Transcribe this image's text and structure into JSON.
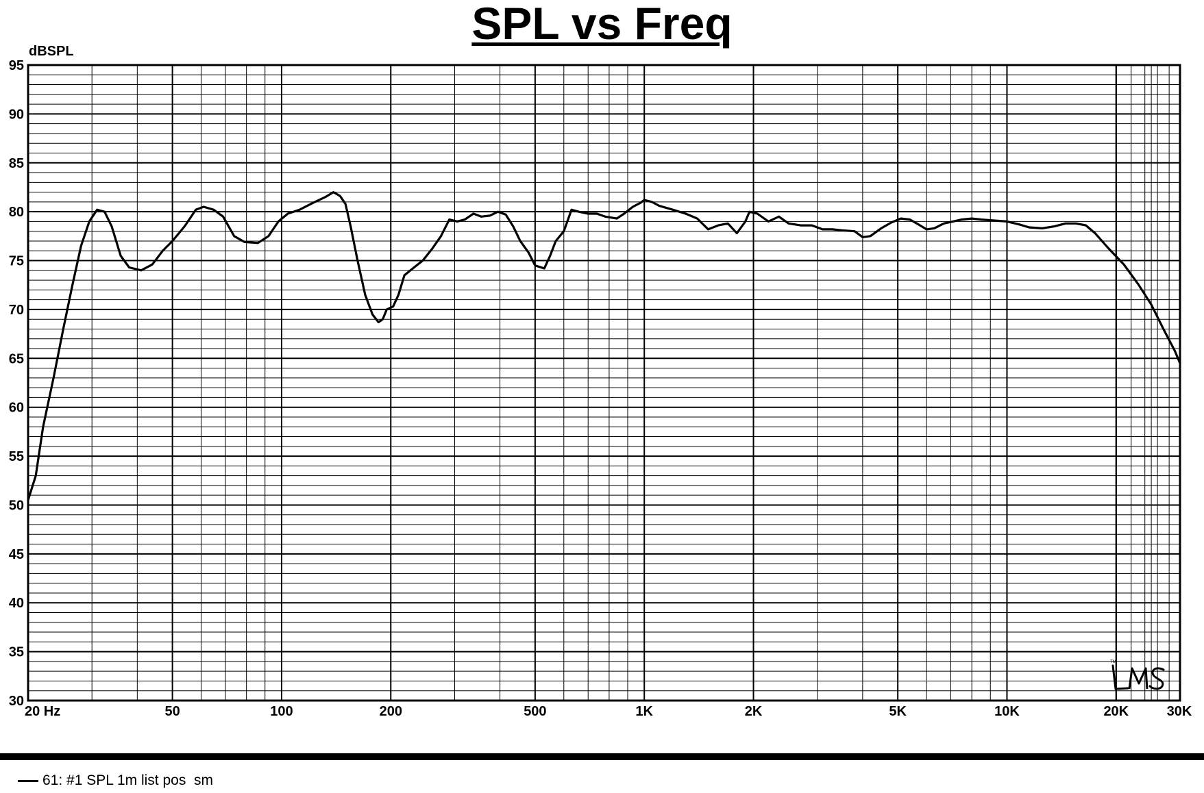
{
  "chart_data": {
    "type": "line",
    "title": "SPL vs Freq",
    "ylabel": "dBSPL",
    "xlabel": "",
    "x_scale": "log",
    "xlim": [
      20,
      30000
    ],
    "ylim": [
      30,
      95
    ],
    "grid": true,
    "y_ticks": [
      "95",
      "90",
      "85",
      "80",
      "75",
      "70",
      "65",
      "60",
      "55",
      "50",
      "45",
      "40",
      "35",
      "30"
    ],
    "x_ticks": [
      {
        "value": 20,
        "label": "20  Hz"
      },
      {
        "value": 50,
        "label": "50"
      },
      {
        "value": 100,
        "label": "100"
      },
      {
        "value": 200,
        "label": "200"
      },
      {
        "value": 500,
        "label": "500"
      },
      {
        "value": 1000,
        "label": "1K"
      },
      {
        "value": 2000,
        "label": "2K"
      },
      {
        "value": 5000,
        "label": "5K"
      },
      {
        "value": 10000,
        "label": "10K"
      },
      {
        "value": 20000,
        "label": "20K"
      },
      {
        "value": 30000,
        "label": "30K"
      }
    ],
    "series": [
      {
        "name": "61: #1 SPL 1m list pos  sm",
        "color": "#000000",
        "points": [
          [
            20,
            50.5
          ],
          [
            21,
            53
          ],
          [
            22,
            58
          ],
          [
            23.5,
            63
          ],
          [
            25,
            68
          ],
          [
            26.5,
            72.5
          ],
          [
            28,
            76.5
          ],
          [
            29.5,
            79
          ],
          [
            31,
            80.2
          ],
          [
            32.5,
            80
          ],
          [
            34,
            78.5
          ],
          [
            36,
            75.5
          ],
          [
            38,
            74.3
          ],
          [
            41,
            74
          ],
          [
            44,
            74.6
          ],
          [
            47,
            76
          ],
          [
            50,
            77
          ],
          [
            54,
            78.5
          ],
          [
            58,
            80.2
          ],
          [
            61,
            80.5
          ],
          [
            65,
            80.2
          ],
          [
            69,
            79.5
          ],
          [
            74,
            77.5
          ],
          [
            79,
            76.9
          ],
          [
            86,
            76.8
          ],
          [
            92,
            77.5
          ],
          [
            98,
            79
          ],
          [
            104,
            79.8
          ],
          [
            112,
            80.2
          ],
          [
            122,
            80.9
          ],
          [
            132,
            81.5
          ],
          [
            139,
            82
          ],
          [
            145,
            81.6
          ],
          [
            150,
            80.8
          ],
          [
            155,
            78.5
          ],
          [
            162,
            75
          ],
          [
            170,
            71.5
          ],
          [
            178,
            69.5
          ],
          [
            185,
            68.7
          ],
          [
            190,
            69
          ],
          [
            195,
            70
          ],
          [
            203,
            70.3
          ],
          [
            210,
            71.5
          ],
          [
            218,
            73.5
          ],
          [
            230,
            74.2
          ],
          [
            245,
            75
          ],
          [
            260,
            76.2
          ],
          [
            275,
            77.5
          ],
          [
            290,
            79.2
          ],
          [
            305,
            79
          ],
          [
            320,
            79.2
          ],
          [
            338,
            79.8
          ],
          [
            355,
            79.5
          ],
          [
            375,
            79.6
          ],
          [
            395,
            80
          ],
          [
            415,
            79.7
          ],
          [
            435,
            78.5
          ],
          [
            455,
            77
          ],
          [
            480,
            75.8
          ],
          [
            500,
            74.5
          ],
          [
            530,
            74.2
          ],
          [
            550,
            75.5
          ],
          [
            570,
            77
          ],
          [
            600,
            78
          ],
          [
            630,
            80.2
          ],
          [
            660,
            80
          ],
          [
            700,
            79.8
          ],
          [
            740,
            79.8
          ],
          [
            780,
            79.5
          ],
          [
            840,
            79.3
          ],
          [
            880,
            79.8
          ],
          [
            930,
            80.5
          ],
          [
            975,
            80.9
          ],
          [
            1000,
            81.2
          ],
          [
            1050,
            81
          ],
          [
            1100,
            80.6
          ],
          [
            1200,
            80.2
          ],
          [
            1300,
            79.8
          ],
          [
            1400,
            79.3
          ],
          [
            1500,
            78.2
          ],
          [
            1600,
            78.6
          ],
          [
            1700,
            78.8
          ],
          [
            1800,
            77.8
          ],
          [
            1900,
            79
          ],
          [
            1950,
            80
          ],
          [
            2050,
            79.8
          ],
          [
            2200,
            79
          ],
          [
            2350,
            79.5
          ],
          [
            2500,
            78.8
          ],
          [
            2700,
            78.6
          ],
          [
            2900,
            78.6
          ],
          [
            3100,
            78.2
          ],
          [
            3300,
            78.2
          ],
          [
            3500,
            78.1
          ],
          [
            3800,
            78
          ],
          [
            4000,
            77.4
          ],
          [
            4200,
            77.5
          ],
          [
            4500,
            78.3
          ],
          [
            4800,
            78.9
          ],
          [
            5100,
            79.3
          ],
          [
            5400,
            79.2
          ],
          [
            5700,
            78.7
          ],
          [
            6000,
            78.2
          ],
          [
            6300,
            78.3
          ],
          [
            6700,
            78.8
          ],
          [
            7100,
            79
          ],
          [
            7500,
            79.2
          ],
          [
            8000,
            79.3
          ],
          [
            8500,
            79.2
          ],
          [
            9200,
            79.1
          ],
          [
            10000,
            79
          ],
          [
            10800,
            78.7
          ],
          [
            11500,
            78.4
          ],
          [
            12500,
            78.3
          ],
          [
            13500,
            78.5
          ],
          [
            14500,
            78.8
          ],
          [
            15500,
            78.8
          ],
          [
            16500,
            78.6
          ],
          [
            17500,
            77.8
          ],
          [
            19000,
            76.3
          ],
          [
            21000,
            74.6
          ],
          [
            23000,
            72.6
          ],
          [
            25000,
            70.5
          ],
          [
            27000,
            68
          ],
          [
            29000,
            65.8
          ],
          [
            30000,
            64.5
          ]
        ]
      }
    ]
  },
  "legend": {
    "label": "61: #1 SPL 1m list pos  sm"
  },
  "watermark_text": "LMS"
}
